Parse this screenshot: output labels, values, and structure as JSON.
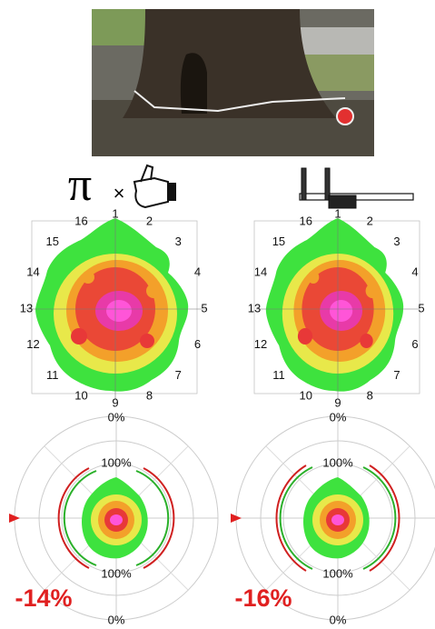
{
  "panels": [
    {
      "symbol": "π",
      "operator": "×",
      "sensors": [
        "1",
        "2",
        "3",
        "4",
        "5",
        "6",
        "7",
        "8",
        "9",
        "10",
        "11",
        "12",
        "13",
        "14",
        "15",
        "16"
      ],
      "polar_labels": {
        "top": "0%",
        "upper": "100%",
        "lower": "100%",
        "bottom": "0%"
      },
      "change": "-14%"
    },
    {
      "sensors": [
        "1",
        "2",
        "3",
        "4",
        "5",
        "6",
        "7",
        "8",
        "9",
        "10",
        "11",
        "12",
        "13",
        "14",
        "15",
        "16"
      ],
      "polar_labels": {
        "top": "0%",
        "upper": "100%",
        "lower": "100%",
        "bottom": "0%"
      },
      "change": "-16%"
    }
  ]
}
